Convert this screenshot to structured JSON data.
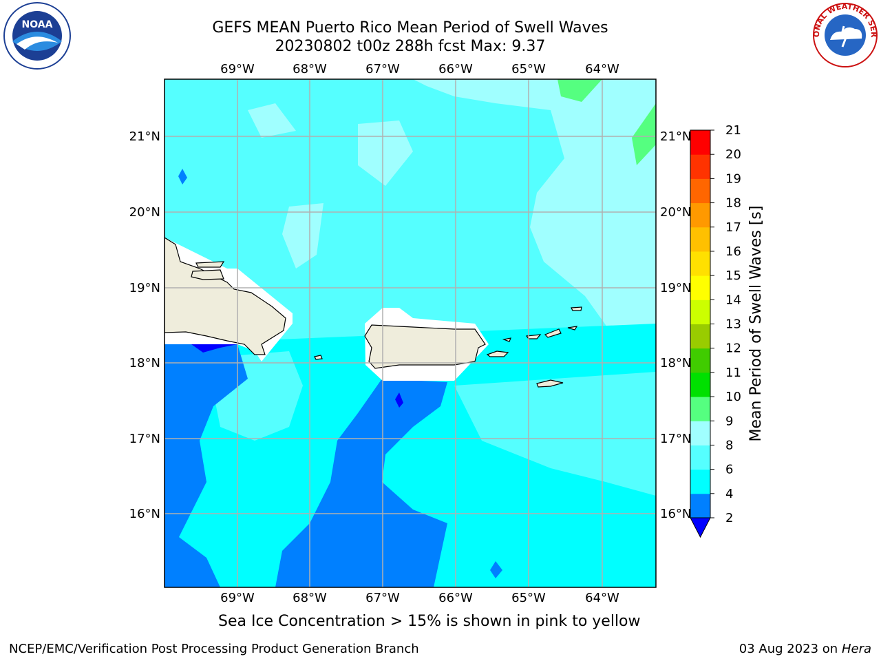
{
  "title": {
    "line1": "GEFS MEAN Puerto Rico Mean Period of Swell Waves",
    "line2": "20230802 t00z 288h fcst   Max: 9.37"
  },
  "logos": {
    "left": "NOAA",
    "right": "NATIONAL WEATHER SERVICE"
  },
  "map": {
    "longitude_labels": [
      "69°W",
      "68°W",
      "67°W",
      "66°W",
      "65°W",
      "64°W"
    ],
    "latitude_labels": [
      "21°N",
      "20°N",
      "19°N",
      "18°N",
      "17°N",
      "16°N"
    ]
  },
  "colorbar": {
    "label": "Mean Period of Swell Waves [s]",
    "ticks": [
      "2",
      "4",
      "6",
      "8",
      "9",
      "10",
      "11",
      "12",
      "13",
      "14",
      "15",
      "16",
      "17",
      "18",
      "19",
      "20",
      "21"
    ],
    "colors": [
      "#0000ff",
      "#0080ff",
      "#00ffff",
      "#55ffff",
      "#a0ffff",
      "#55ff80",
      "#00e000",
      "#40cc00",
      "#99cc00",
      "#ccff00",
      "#ffff00",
      "#ffe000",
      "#ffc000",
      "#ff9900",
      "#ff6600",
      "#ff3300",
      "#ff0000"
    ]
  },
  "caption": "Sea Ice Concentration > 15% is shown in pink to yellow",
  "footer": {
    "credit": "NCEP/EMC/Verification Post Processing Product Generation Branch",
    "date": "03 Aug 2023 on",
    "machine": "Hera"
  }
}
